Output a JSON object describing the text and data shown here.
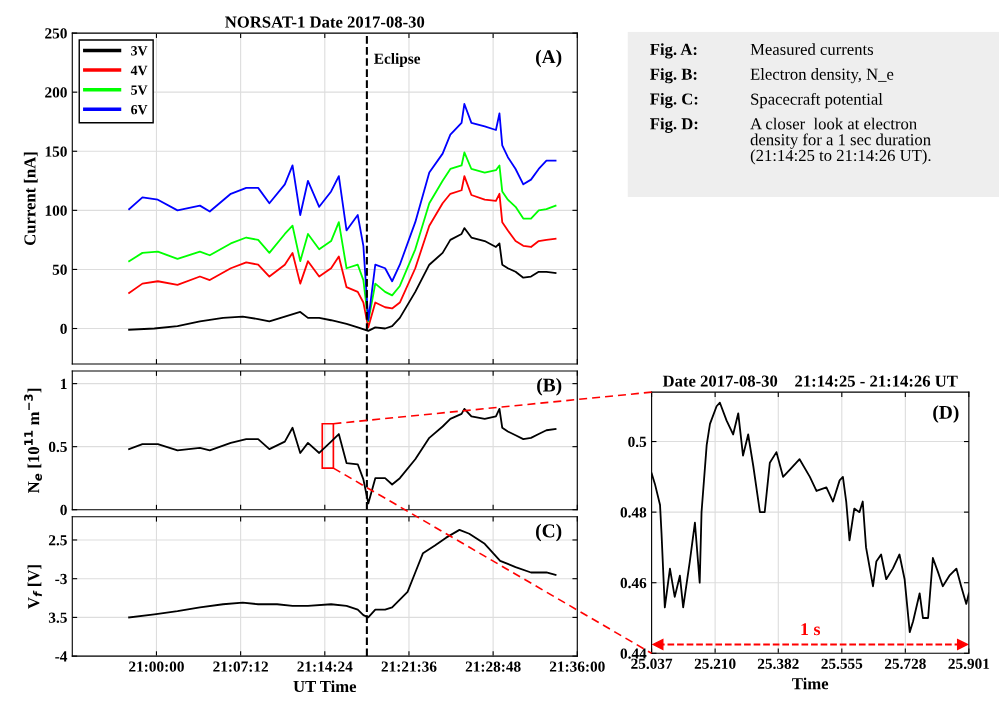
{
  "chart_data": [
    {
      "type": "line",
      "title": "NORSAT-1 Date 2017-08-30",
      "ylabel": "Current [nA]",
      "xlim": [
        20.88,
        21.6
      ],
      "xticks": [
        {
          "value": 21.0,
          "label": null
        },
        {
          "value": 21.12,
          "label": null
        },
        {
          "value": 21.24,
          "label": null
        },
        {
          "value": 21.36,
          "label": null
        },
        {
          "value": 21.48,
          "label": null
        },
        {
          "value": 21.6,
          "label": null
        }
      ],
      "ylim": [
        -30,
        250
      ],
      "yticks": [
        0,
        50,
        100,
        150,
        200,
        250
      ],
      "tick_labels": "y",
      "grid": true,
      "legend": "top left",
      "line_style": "solid",
      "annotations": [
        "(A)"
      ],
      "ref_lines": [
        {
          "axis": "x",
          "value": 21.3,
          "label": "Eclipse",
          "color": "#000000",
          "line_style": "dashed"
        }
      ],
      "x": [
        20.961,
        20.98,
        21.002,
        21.03,
        21.062,
        21.076,
        21.106,
        21.128,
        21.145,
        21.161,
        21.183,
        21.194,
        21.205,
        21.216,
        21.232,
        21.249,
        21.26,
        21.271,
        21.287,
        21.295,
        21.302,
        21.312,
        21.326,
        21.336,
        21.347,
        21.369,
        21.389,
        21.408,
        21.419,
        21.435,
        21.439,
        21.449,
        21.468,
        21.484,
        21.489,
        21.493,
        21.501,
        21.512,
        21.523,
        21.534,
        21.545,
        21.556,
        21.569
      ],
      "series": [
        {
          "name": "3V",
          "color": "#000000",
          "x": [
            20.961,
            20.997,
            21.03,
            21.062,
            21.095,
            21.123,
            21.145,
            21.161,
            21.183,
            21.205,
            21.216,
            21.232,
            21.249,
            21.271,
            21.287,
            21.302,
            21.312,
            21.326,
            21.336,
            21.347,
            21.369,
            21.389,
            21.408,
            21.419,
            21.435,
            21.439,
            21.449,
            21.468,
            21.484,
            21.489,
            21.493,
            21.501,
            21.512,
            21.523,
            21.534,
            21.545,
            21.556,
            21.569
          ],
          "values": [
            -1,
            0,
            2,
            6,
            9,
            10,
            8,
            6,
            10,
            14,
            9,
            9,
            7,
            4,
            1,
            -2,
            1,
            0,
            2,
            9,
            31,
            54,
            64,
            75,
            80,
            85,
            77,
            74,
            69,
            72,
            54,
            51,
            48,
            43,
            44,
            48,
            48,
            47
          ]
        },
        {
          "name": "4V",
          "color": "#ff0000",
          "values": [
            30,
            38,
            40,
            37,
            44,
            41,
            51,
            56,
            54,
            44,
            54,
            64,
            38,
            57,
            44,
            51,
            61,
            35,
            31,
            22,
            1,
            22,
            18,
            17,
            22,
            51,
            87,
            106,
            114,
            117,
            129,
            113,
            109,
            108,
            114,
            90,
            83,
            74,
            70,
            69,
            74,
            75,
            76
          ]
        },
        {
          "name": "5V",
          "color": "#00ff00",
          "values": [
            57,
            64,
            65,
            59,
            65,
            62,
            72,
            77,
            75,
            64,
            80,
            87,
            57,
            80,
            67,
            74,
            90,
            51,
            54,
            41,
            6,
            38,
            31,
            28,
            36,
            67,
            106,
            125,
            135,
            138,
            149,
            135,
            132,
            134,
            138,
            116,
            109,
            103,
            93,
            93,
            100,
            101,
            104
          ]
        },
        {
          "name": "6V",
          "color": "#0000ff",
          "values": [
            101,
            111,
            109,
            100,
            104,
            99,
            114,
            119,
            119,
            106,
            122,
            138,
            96,
            125,
            103,
            116,
            129,
            83,
            96,
            70,
            7,
            54,
            51,
            40,
            54,
            90,
            132,
            148,
            164,
            174,
            190,
            174,
            171,
            168,
            182,
            155,
            145,
            135,
            122,
            126,
            135,
            142,
            142
          ]
        }
      ]
    },
    {
      "type": "line",
      "ylabel": "N$_{e}$ [10$^{11}$ m$^{−3}$]",
      "xlim": [
        20.88,
        21.6
      ],
      "xticks": [
        {
          "value": 21.0,
          "label": null
        },
        {
          "value": 21.12,
          "label": null
        },
        {
          "value": 21.24,
          "label": null
        },
        {
          "value": 21.36,
          "label": null
        },
        {
          "value": 21.48,
          "label": null
        },
        {
          "value": 21.6,
          "label": null
        }
      ],
      "ylim": [
        0,
        1.1
      ],
      "yticks": [
        0,
        0.5,
        1
      ],
      "tick_labels": "y",
      "grid": true,
      "line_style": "solid",
      "annotations": [
        "(B)"
      ],
      "ref_lines": [
        {
          "axis": "x",
          "value": 21.3,
          "color": "#000000",
          "line_style": "dashed"
        }
      ],
      "x": [
        20.961,
        20.98,
        21.002,
        21.03,
        21.062,
        21.076,
        21.106,
        21.128,
        21.145,
        21.161,
        21.183,
        21.194,
        21.205,
        21.216,
        21.232,
        21.249,
        21.26,
        21.271,
        21.287,
        21.295,
        21.302,
        21.312,
        21.326,
        21.336,
        21.347,
        21.369,
        21.389,
        21.408,
        21.419,
        21.435,
        21.439,
        21.449,
        21.468,
        21.484,
        21.489,
        21.493,
        21.501,
        21.512,
        21.523,
        21.534,
        21.545,
        21.556,
        21.569
      ],
      "series": [
        {
          "color": "#000000",
          "values": [
            0.48,
            0.52,
            0.52,
            0.47,
            0.49,
            0.47,
            0.53,
            0.56,
            0.56,
            0.48,
            0.54,
            0.65,
            0.45,
            0.53,
            0.45,
            0.54,
            0.6,
            0.37,
            0.36,
            0.24,
            0.05,
            0.25,
            0.25,
            0.2,
            0.25,
            0.4,
            0.57,
            0.66,
            0.72,
            0.76,
            0.8,
            0.74,
            0.72,
            0.74,
            0.8,
            0.65,
            0.62,
            0.59,
            0.56,
            0.57,
            0.6,
            0.63,
            0.64
          ]
        }
      ]
    },
    {
      "type": "line",
      "ylabel": "V$_{f}$ [V]",
      "xlabel": "UT Time",
      "xlim": [
        20.88,
        21.6
      ],
      "xticks": [
        {
          "value": 21.0,
          "label": "21:00:00"
        },
        {
          "value": 21.12,
          "label": "21:07:12"
        },
        {
          "value": 21.24,
          "label": "21:14:24"
        },
        {
          "value": 21.36,
          "label": "21:21:36"
        },
        {
          "value": 21.48,
          "label": "21:28:48"
        },
        {
          "value": 21.6,
          "label": "21:36:00"
        }
      ],
      "ylim": [
        -4,
        -2.2
      ],
      "yticks": [
        {
          "value": -4,
          "label": "-4"
        },
        {
          "value": -3.5,
          "label": "3.5"
        },
        {
          "value": -3,
          "label": "-3"
        },
        {
          "value": -2.5,
          "label": "2.5"
        }
      ],
      "grid": true,
      "line_style": "solid",
      "annotations": [
        "(C)"
      ],
      "ref_lines": [
        {
          "axis": "x",
          "value": 21.3,
          "color": "#000000",
          "line_style": "dashed"
        }
      ],
      "x": [
        20.961,
        20.997,
        21.03,
        21.062,
        21.095,
        21.123,
        21.145,
        21.172,
        21.194,
        21.216,
        21.249,
        21.271,
        21.287,
        21.295,
        21.302,
        21.312,
        21.326,
        21.336,
        21.347,
        21.358,
        21.369,
        21.38,
        21.397,
        21.413,
        21.432,
        21.446,
        21.468,
        21.49,
        21.512,
        21.534,
        21.556,
        21.569
      ],
      "series": [
        {
          "color": "#000000",
          "values": [
            -3.5,
            -3.46,
            -3.42,
            -3.37,
            -3.33,
            -3.31,
            -3.33,
            -3.33,
            -3.35,
            -3.35,
            -3.33,
            -3.35,
            -3.4,
            -3.47,
            -3.5,
            -3.4,
            -3.4,
            -3.37,
            -3.27,
            -3.17,
            -2.92,
            -2.67,
            -2.57,
            -2.47,
            -2.37,
            -2.42,
            -2.55,
            -2.77,
            -2.85,
            -2.92,
            -2.92,
            -2.95
          ]
        }
      ]
    },
    {
      "type": "line",
      "title": "Date 2017-08-30    21:14:25 - 21:14:26 UT",
      "xlabel": "Time",
      "xlim": [
        25.037,
        25.901
      ],
      "xticks": [
        25.037,
        {
          "value": 25.21,
          "label": "25.210"
        },
        25.382,
        25.555,
        25.728,
        25.901
      ],
      "ylim": [
        0.44,
        0.514
      ],
      "yticks": [
        0.44,
        0.46,
        0.48,
        {
          "value": 0.5,
          "label": "0.5"
        }
      ],
      "grid": true,
      "line_style": "solid",
      "annotations": [
        "(D)"
      ],
      "ref_lines": [
        {
          "axis": "y",
          "value": 0.4425,
          "label": "1 s",
          "color": "#ff0000",
          "line_style": "dashed"
        }
      ],
      "x": [
        25.037,
        25.046,
        25.06,
        25.064,
        25.073,
        25.087,
        25.1,
        25.114,
        25.123,
        25.141,
        25.155,
        25.168,
        25.173,
        25.187,
        25.196,
        25.214,
        25.223,
        25.241,
        25.259,
        25.273,
        25.286,
        25.3,
        25.314,
        25.332,
        25.345,
        25.359,
        25.377,
        25.395,
        25.413,
        25.44,
        25.468,
        25.486,
        25.513,
        25.531,
        25.549,
        25.558,
        25.567,
        25.576,
        25.589,
        25.603,
        25.612,
        25.621,
        25.64,
        25.649,
        25.662,
        25.676,
        25.694,
        25.712,
        25.726,
        25.74,
        25.749,
        25.767,
        25.776,
        25.79,
        25.803,
        25.817,
        25.83,
        25.848,
        25.867,
        25.88,
        25.894,
        25.901
      ],
      "series": [
        {
          "color": "#000000",
          "values": [
            0.491,
            0.488,
            0.482,
            0.474,
            0.453,
            0.464,
            0.456,
            0.462,
            0.453,
            0.466,
            0.477,
            0.46,
            0.48,
            0.499,
            0.505,
            0.51,
            0.511,
            0.506,
            0.502,
            0.508,
            0.496,
            0.502,
            0.493,
            0.48,
            0.48,
            0.494,
            0.497,
            0.49,
            0.492,
            0.495,
            0.49,
            0.486,
            0.487,
            0.483,
            0.489,
            0.49,
            0.483,
            0.472,
            0.481,
            0.48,
            0.483,
            0.47,
            0.459,
            0.466,
            0.468,
            0.461,
            0.464,
            0.468,
            0.461,
            0.446,
            0.449,
            0.457,
            0.45,
            0.45,
            0.467,
            0.463,
            0.459,
            0.462,
            0.464,
            0.459,
            0.454,
            0.457
          ]
        }
      ]
    },
    {
      "type": "other",
      "annotations": [
        "Fig. A:",
        "Measured currents",
        "Fig. B:",
        "Electron density, N_e",
        "Fig. C:",
        "Spacecraft potential",
        "Fig. D:",
        "A closer  look at electron\ndensity for a 1 sec duration\n(21:14:25 to 21:14:26 UT)."
      ]
    }
  ]
}
